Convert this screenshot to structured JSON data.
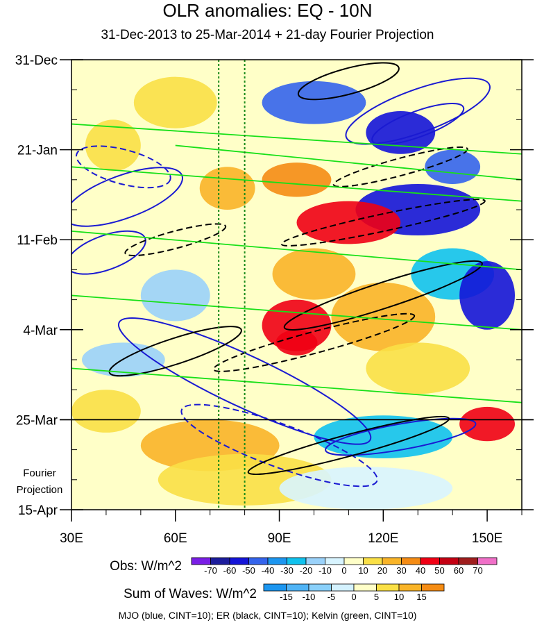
{
  "colors": {
    "mjo": "#1a1ad2",
    "er": "#000000",
    "kelvin": "#18e018",
    "guide": "#1a8a1a"
  },
  "chart_data": {
    "type": "heatmap",
    "title": "OLR anomalies: EQ - 10N",
    "subtitle": "31-Dec-2013 to 25-Mar-2014 + 21-day Fourier Projection",
    "x_ticks": [
      "30E",
      "60E",
      "90E",
      "120E",
      "150E"
    ],
    "x_tick_values": [
      30,
      60,
      90,
      120,
      150
    ],
    "xlim": [
      30,
      160
    ],
    "y_ticks": [
      "31-Dec",
      "21-Jan",
      "11-Feb",
      "4-Mar",
      "25-Mar",
      "15-Apr"
    ],
    "y_tick_values": [
      0,
      21,
      42,
      63,
      84,
      105
    ],
    "ylim": [
      0,
      105
    ],
    "projection_label_1": "Fourier",
    "projection_label_2": "Projection",
    "projection_start_day": 84,
    "vertical_guides_lon": [
      72.5,
      80
    ],
    "obs_colorbar": {
      "label": "Obs: W/m^2",
      "levels": [
        "-70",
        "-60",
        "-50",
        "-40",
        "-30",
        "-20",
        "-10",
        "0",
        "10",
        "20",
        "30",
        "40",
        "50",
        "60",
        "70"
      ],
      "colors": [
        "#7a1ee6",
        "#1c1c9c",
        "#1414d8",
        "#3464ec",
        "#1c96f0",
        "#10c2ee",
        "#9ad2fa",
        "#d8f4ff",
        "#ffffc8",
        "#fae046",
        "#f9b428",
        "#f58c14",
        "#f00014",
        "#c40012",
        "#a01e1e",
        "#f070c8"
      ]
    },
    "waves_colorbar": {
      "label": "Sum of Waves: W/m^2",
      "levels": [
        "-15",
        "-10",
        "-5",
        "0",
        "5",
        "10",
        "15"
      ],
      "colors": [
        "#1c96f0",
        "#50b4f6",
        "#8ad0fa",
        "#d4f2ff",
        "#ffffc8",
        "#fae046",
        "#f9b428",
        "#f58c14"
      ]
    },
    "footnote": "MJO (blue, CINT=10); ER (black, CINT=10); Kelvin (green, CINT=10)"
  }
}
